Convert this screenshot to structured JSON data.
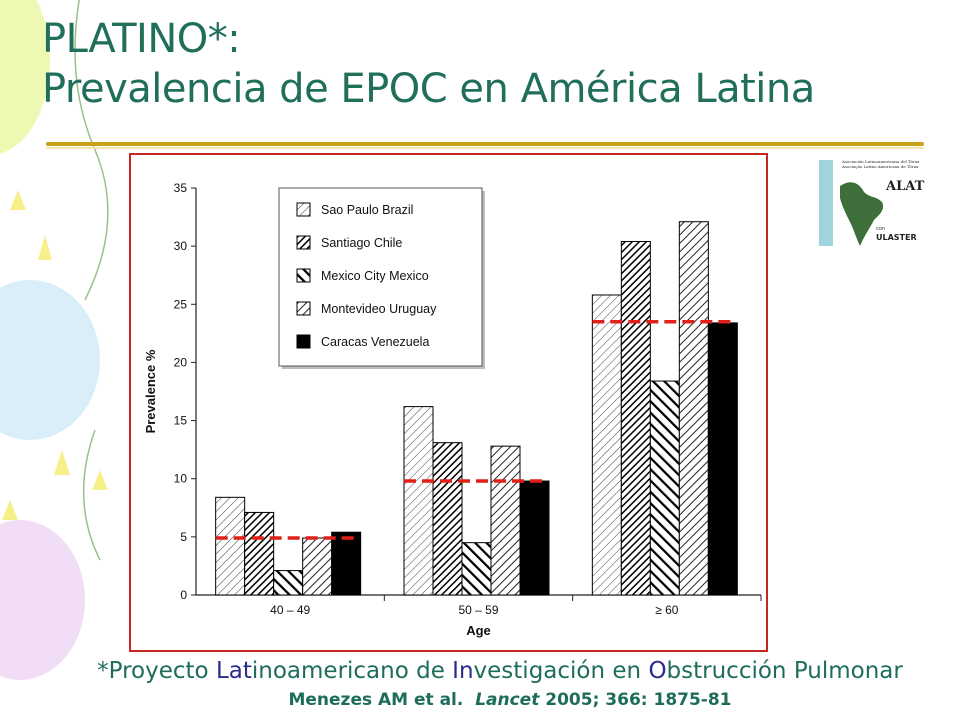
{
  "title": {
    "line1": "PLATINO*:",
    "line2": "Prevalencia de EPOC en América Latina"
  },
  "logo": {
    "line1": "Asociación Latinoamericana del Tórax",
    "line2": "Asociação Latino Americana de Tórax",
    "name": "ALAT",
    "con": "con",
    "partner": "ULASTER"
  },
  "footnote": {
    "parts": [
      "*Proyecto ",
      "Lat",
      "inoamericano de ",
      "In",
      "vestigación en ",
      "O",
      "bstrucción Pulmonar"
    ]
  },
  "citation": {
    "authors": "Menezes AM et al.",
    "journal": "Lancet",
    "details": "2005; 366: 1875-81"
  },
  "colors": {
    "title": "#1f6f5b",
    "frame": "#c4271f",
    "average_line": "#e0201a",
    "rule": "#c9a21a"
  },
  "chart_data": {
    "type": "bar",
    "xlabel": "Age",
    "ylabel": "Prevalence %",
    "ylim": [
      0,
      35
    ],
    "yticks": [
      0,
      5,
      10,
      15,
      20,
      25,
      30,
      35
    ],
    "categories": [
      "40 – 49",
      "50 – 59",
      "≥ 60"
    ],
    "legend_position": "top-left",
    "series": [
      {
        "name": "Sao Paulo Brazil",
        "pattern": "light-diagonal",
        "values": [
          8.4,
          16.2,
          25.8
        ]
      },
      {
        "name": "Santiago Chile",
        "pattern": "dense-diagonal",
        "values": [
          7.1,
          13.1,
          30.4
        ]
      },
      {
        "name": "Mexico City Mexico",
        "pattern": "bold-backslash",
        "values": [
          2.1,
          4.5,
          18.4
        ]
      },
      {
        "name": "Montevideo Uruguay",
        "pattern": "medium-diagonal",
        "values": [
          4.9,
          12.8,
          32.1
        ]
      },
      {
        "name": "Caracas Venezuela",
        "pattern": "solid",
        "values": [
          5.4,
          9.8,
          23.4
        ]
      }
    ],
    "average_lines": [
      4.9,
      9.8,
      23.5
    ]
  }
}
